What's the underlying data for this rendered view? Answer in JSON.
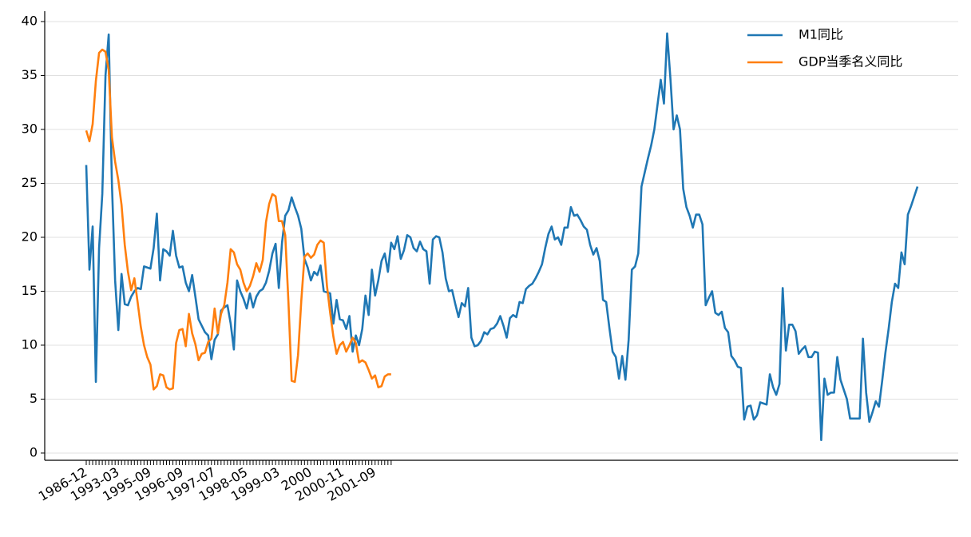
{
  "chart_data": {
    "type": "line",
    "categories": [
      "1986-12",
      null,
      null,
      null,
      null,
      null,
      null,
      null,
      null,
      null,
      "1993-03",
      null,
      null,
      null,
      null,
      null,
      null,
      null,
      null,
      null,
      "1995-09",
      null,
      null,
      null,
      null,
      null,
      null,
      null,
      null,
      null,
      "1996-09",
      null,
      null,
      null,
      null,
      null,
      null,
      null,
      null,
      null,
      "1997-07",
      null,
      null,
      null,
      null,
      null,
      null,
      null,
      null,
      null,
      "1998-05",
      null,
      null,
      null,
      null,
      null,
      null,
      null,
      null,
      null,
      "1999-03",
      null,
      null,
      null,
      null,
      null,
      null,
      null,
      null,
      null,
      "2000",
      null,
      null,
      null,
      null,
      null,
      null,
      null,
      null,
      null,
      "2000-11",
      null,
      null,
      null,
      null,
      null,
      null,
      null,
      null,
      null,
      "2001-09",
      null,
      null,
      null,
      null,
      null,
      null,
      null,
      null,
      null,
      null,
      null,
      null,
      null,
      null,
      null,
      null,
      null,
      null,
      null,
      null,
      null,
      null,
      null,
      null,
      null,
      null,
      null,
      null,
      null,
      null,
      null,
      null,
      null,
      null,
      null,
      null,
      null,
      null,
      null,
      null,
      null,
      null,
      null,
      null,
      null,
      null,
      null,
      null,
      null,
      null,
      null,
      null,
      null,
      null,
      null,
      null,
      null,
      null,
      null,
      null,
      null,
      null,
      null,
      null,
      null,
      null,
      null,
      null,
      null,
      null,
      null,
      null,
      null,
      null,
      null,
      null,
      null,
      null,
      null,
      null,
      null,
      null,
      null,
      null,
      null,
      null,
      null,
      null,
      null,
      null,
      null,
      null,
      null,
      null,
      null,
      null,
      null,
      null,
      null,
      null,
      null,
      null,
      null,
      null,
      null,
      null,
      null,
      null,
      null,
      null,
      null,
      null,
      null,
      null,
      null,
      null,
      null,
      null,
      null,
      null,
      null,
      null,
      null,
      null,
      null,
      null,
      null,
      null,
      null,
      null,
      null,
      null,
      null,
      null,
      null,
      null,
      null,
      null,
      null,
      null,
      null,
      null,
      null,
      null,
      null,
      null,
      null,
      null,
      null,
      null,
      null,
      null,
      null,
      null,
      null,
      null,
      null,
      null,
      null,
      null,
      null,
      null,
      null,
      null,
      null,
      null,
      null,
      null,
      null
    ],
    "series": [
      {
        "name": "M1同比",
        "color": "#1f77b4",
        "values": [
          26.7,
          17,
          21,
          6.6,
          19,
          24,
          35,
          38.8,
          25,
          16,
          11.4,
          16.6,
          13.8,
          13.7,
          14.5,
          15,
          15.3,
          15.2,
          17.3,
          17.2,
          17.1,
          19,
          22.2,
          16,
          18.9,
          18.7,
          18.3,
          20.6,
          18.3,
          17.2,
          17.3,
          15.8,
          15,
          16.5,
          14.5,
          12.4,
          11.8,
          11.2,
          10.9,
          8.7,
          10.5,
          11,
          13.2,
          13.5,
          13.7,
          12,
          9.6,
          16,
          15,
          14.3,
          13.4,
          14.8,
          13.5,
          14.5,
          15,
          15.2,
          15.8,
          16.9,
          18.5,
          19.4,
          15.3,
          19.5,
          22,
          22.5,
          23.7,
          22.8,
          22,
          20.8,
          18,
          17.2,
          16,
          16.8,
          16.5,
          17.4,
          15,
          14.9,
          14.8,
          12,
          14.2,
          12.4,
          12.3,
          11.5,
          12.7,
          9.4,
          10.9,
          10,
          11.5,
          14.6,
          12.8,
          17,
          14.6,
          16,
          17.8,
          18.5,
          16.8,
          19.5,
          18.9,
          20.1,
          18,
          18.8,
          20.2,
          20,
          19,
          18.7,
          19.6,
          18.9,
          18.7,
          15.7,
          19.8,
          20.1,
          20,
          18.6,
          16.2,
          15,
          15.1,
          13.8,
          12.6,
          13.9,
          13.6,
          15.3,
          10.7,
          9.9,
          10,
          10.4,
          11.2,
          11,
          11.5,
          11.6,
          12,
          12.7,
          11.8,
          10.7,
          12.5,
          12.8,
          12.6,
          14,
          13.9,
          15.2,
          15.5,
          15.7,
          16.2,
          16.8,
          17.5,
          19,
          20.3,
          21,
          19.8,
          20,
          19.3,
          20.9,
          20.9,
          22.8,
          22,
          22.1,
          21.6,
          21,
          20.7,
          19.3,
          18.4,
          19,
          17.8,
          14.2,
          14,
          11.6,
          9.4,
          8.9,
          6.9,
          9,
          6.8,
          10.5,
          17,
          17.3,
          18.5,
          24.7,
          26,
          27.3,
          28.5,
          30,
          32.3,
          34.6,
          32.4,
          38.9,
          34.8,
          30,
          31.3,
          30,
          24.5,
          22.8,
          22,
          20.9,
          22.1,
          22.1,
          21.2,
          13.7,
          14.4,
          15,
          13,
          12.8,
          13.1,
          11.6,
          11.2,
          9,
          8.6,
          8,
          7.9,
          3.1,
          4.3,
          4.4,
          3.1,
          3.5,
          4.7,
          4.6,
          4.5,
          7.3,
          6.1,
          5.4,
          6.4,
          15.3,
          9.5,
          11.9,
          11.9,
          11.3,
          9.2,
          9.6,
          9.9,
          8.9,
          8.9,
          9.4,
          9.3,
          1.2,
          6.9,
          5.4,
          5.6,
          5.6,
          8.9,
          6.8,
          5.9,
          5,
          3.2,
          3.2,
          3.2,
          3.2,
          10.6,
          5.6,
          2.9,
          3.8,
          4.8,
          4.3,
          6.7,
          9.3,
          11.5,
          14,
          15.7,
          15.3,
          18.6,
          17.5,
          22.1,
          22.9,
          23.8,
          24.7
        ]
      },
      {
        "name": "GDP当季名义同比",
        "color": "#ff7f0e",
        "values": [
          29.9,
          28.9,
          30.5,
          34.5,
          37.1,
          37.4,
          37.2,
          35.5,
          29.3,
          27,
          25.3,
          23,
          19.3,
          16.8,
          15.1,
          16.2,
          14,
          11.7,
          10,
          8.9,
          8.2,
          5.9,
          6.2,
          7.3,
          7.2,
          6.1,
          5.9,
          6,
          10.2,
          11.4,
          11.5,
          9.9,
          12.9,
          11.1,
          10.1,
          8.6,
          9.2,
          9.3,
          10.3,
          10.6,
          13.4,
          11.1,
          12.9,
          13.7,
          15.8,
          18.9,
          18.6,
          17.5,
          17,
          15.8,
          15,
          15.5,
          16.4,
          17.6,
          16.8,
          17.9,
          21.4,
          23.1,
          24,
          23.8,
          21.5,
          21.5,
          20.2,
          14,
          6.7,
          6.6,
          9.1,
          14.1,
          18.2,
          18.5,
          18.1,
          18.4,
          19.3,
          19.7,
          19.5,
          15.5,
          13,
          10.8,
          9.2,
          10,
          10.3,
          9.4,
          10,
          10.7,
          10.2,
          8.4,
          8.6,
          8.4,
          7.7,
          6.9,
          7.2,
          6.1,
          6.2,
          7.1,
          7.3,
          7.3,
          null,
          null,
          null,
          null,
          null,
          null,
          null,
          null,
          null,
          null,
          null,
          null,
          null,
          null,
          null,
          null,
          null,
          null,
          null,
          null,
          null,
          null,
          null,
          null,
          null,
          null,
          null,
          null,
          null,
          null,
          null,
          null,
          null,
          null,
          null,
          null,
          null,
          null,
          null,
          null,
          null,
          null,
          null,
          null,
          null,
          null,
          null,
          null,
          null,
          null,
          null,
          null,
          null,
          null,
          null,
          null,
          null,
          null,
          null,
          null,
          null,
          null,
          null,
          null,
          null,
          null,
          null,
          null,
          null,
          null,
          null,
          null,
          null,
          null,
          null,
          null,
          null,
          null,
          null,
          null,
          null,
          null,
          null,
          null,
          null,
          null,
          null,
          null,
          null,
          null,
          null,
          null,
          null,
          null,
          null,
          null,
          null,
          null,
          null,
          null,
          null,
          null,
          null,
          null,
          null,
          null,
          null,
          null,
          null,
          null,
          null,
          null,
          null,
          null,
          null,
          null,
          null,
          null,
          null,
          null,
          null,
          null,
          null,
          null,
          null,
          null,
          null,
          null,
          null,
          null,
          null,
          null,
          null,
          null,
          null,
          null,
          null,
          null,
          null,
          null,
          null,
          null,
          null,
          null,
          null,
          null,
          null,
          null,
          null,
          null,
          null,
          null,
          null,
          null,
          null,
          null,
          null,
          null,
          null,
          null,
          null,
          null,
          null,
          null
        ]
      }
    ],
    "ylim": [
      -0.67,
      40.96
    ],
    "yticks": [
      0,
      5,
      10,
      15,
      20,
      25,
      30,
      35,
      40
    ],
    "grid": true,
    "legend": "upper right"
  }
}
